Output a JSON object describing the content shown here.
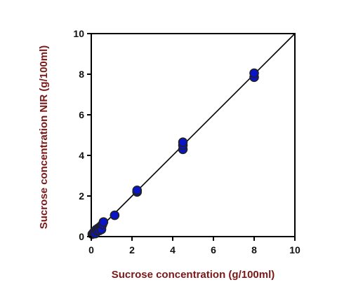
{
  "chart_data": {
    "type": "scatter",
    "xlabel": "Sucrose concentration (g/100ml)",
    "ylabel": "Sucrose concentration NIR (g/100ml)",
    "xlim": [
      0,
      10
    ],
    "ylim": [
      0,
      10
    ],
    "xticks": [
      "0",
      "2",
      "4",
      "6",
      "8",
      "10"
    ],
    "yticks": [
      "0",
      "2",
      "4",
      "6",
      "8",
      "10"
    ],
    "grid": false,
    "legend": "none",
    "reference_line": {
      "from": [
        0,
        0
      ],
      "to": [
        10,
        10
      ]
    },
    "series": [
      {
        "x": [
          0.05,
          0.1,
          0.15,
          0.2,
          0.25,
          0.3,
          0.35,
          0.4,
          0.45,
          0.5,
          0.5,
          0.55,
          0.6,
          1.15,
          2.25,
          2.25,
          4.5,
          4.5,
          4.5,
          8.0,
          8.0
        ],
        "y": [
          0.12,
          0.18,
          0.25,
          0.15,
          0.35,
          0.28,
          0.42,
          0.3,
          0.5,
          0.45,
          0.35,
          0.6,
          0.72,
          1.05,
          2.2,
          2.28,
          4.3,
          4.5,
          4.65,
          7.85,
          8.05
        ]
      }
    ],
    "colors": {
      "marker_fill": "#0a14c8",
      "marker_stroke": "#222222",
      "axis_title": "#7b1717",
      "axis": "#000000"
    }
  }
}
